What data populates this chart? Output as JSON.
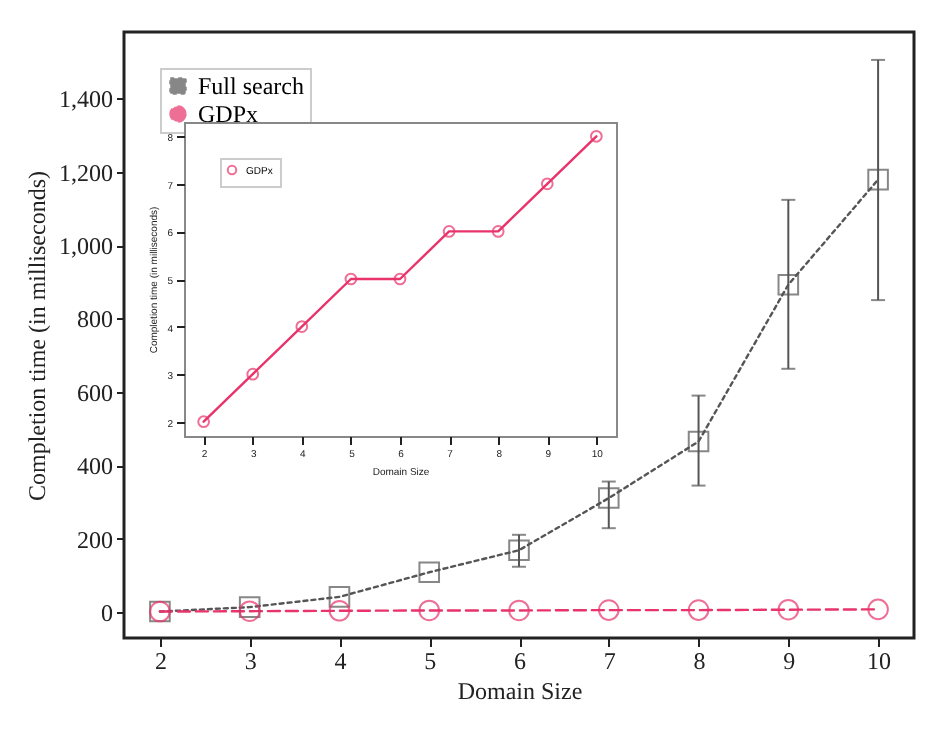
{
  "chart_data": [
    {
      "type": "line",
      "xlabel": "Domain Size",
      "ylabel": "Completion time (in milliseconds)",
      "x": [
        2,
        3,
        4,
        5,
        6,
        7,
        8,
        9,
        10
      ],
      "xlim": [
        1.6,
        10.4
      ],
      "xticks": [
        2,
        3,
        4,
        5,
        6,
        7,
        8,
        9,
        10
      ],
      "ylim": [
        -70,
        1580
      ],
      "yticks": [
        0,
        200,
        400,
        600,
        800,
        {
          "value": 1000,
          "label": "1,000"
        },
        {
          "value": 1200,
          "label": "1,200"
        },
        {
          "value": 1400,
          "label": "1,400"
        }
      ],
      "legend": "top left",
      "series": [
        {
          "name": "Full search",
          "color": "#555555",
          "marker": "square",
          "line_style": "dotted",
          "values": [
            2,
            14,
            42,
            109,
            169,
            311,
            465,
            892,
            1178
          ],
          "errors": [
            null,
            null,
            null,
            null,
            [
              124,
              211
            ],
            [
              229,
              356
            ],
            [
              345,
              590
            ],
            [
              663,
              1123
            ],
            [
              850,
              1504
            ]
          ]
        },
        {
          "name": "GDPx",
          "color": "#e8336b",
          "marker": "circle",
          "line_style": "dashed",
          "values": [
            2,
            3,
            4,
            5,
            5,
            6,
            6,
            7,
            8
          ]
        }
      ]
    },
    {
      "type": "line",
      "xlabel": "Domain Size",
      "ylabel": "Completion time (in milliseconds)",
      "x": [
        2,
        3,
        4,
        5,
        6,
        7,
        8,
        9,
        10
      ],
      "xlim": [
        1.6,
        10.4
      ],
      "xticks": [
        2,
        3,
        4,
        5,
        6,
        7,
        8,
        9,
        10
      ],
      "ylim": [
        1.7,
        8.3
      ],
      "yticks": [
        2,
        3,
        4,
        5,
        6,
        7,
        8
      ],
      "legend": "top left",
      "series": [
        {
          "name": "GDPx",
          "color": "#e8336b",
          "marker": "circle",
          "line_style": "solid",
          "values": [
            2,
            3,
            4,
            5,
            5,
            6,
            6,
            7,
            8
          ]
        }
      ]
    }
  ]
}
